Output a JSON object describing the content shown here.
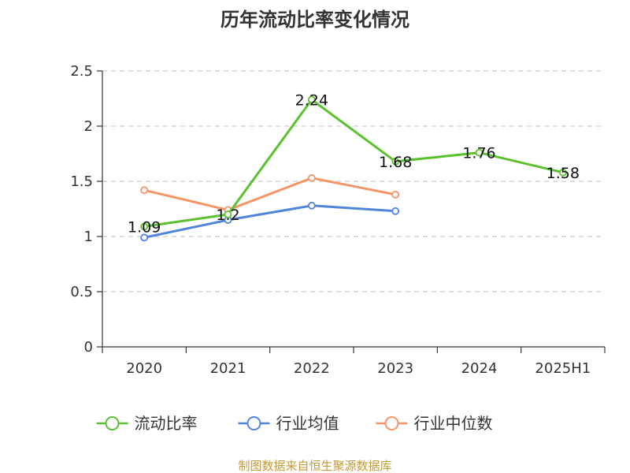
{
  "chart_data": {
    "type": "line",
    "title": "历年流动比率变化情况",
    "categories": [
      "2020",
      "2021",
      "2022",
      "2023",
      "2024",
      "2025H1"
    ],
    "ylim": [
      0,
      2.5
    ],
    "yticks": [
      "0",
      "0.5",
      "1",
      "1.5",
      "2",
      "2.5"
    ],
    "grid": true,
    "legend_position": "bottom",
    "series": [
      {
        "name": "流动比率",
        "color": "#5cc12e",
        "values": [
          1.09,
          1.2,
          2.24,
          1.68,
          1.76,
          1.58
        ],
        "labels": [
          "1.09",
          "1.2",
          "2.24",
          "1.68",
          "1.76",
          "1.58"
        ]
      },
      {
        "name": "行业均值",
        "color": "#4f86dc",
        "values": [
          0.99,
          1.15,
          1.28,
          1.23,
          null,
          null
        ]
      },
      {
        "name": "行业中位数",
        "color": "#f59566",
        "values": [
          1.42,
          1.24,
          1.53,
          1.38,
          null,
          null
        ]
      }
    ]
  },
  "source": {
    "text": "制图数据来自恒生聚源数据库",
    "color": "#c39a3a"
  }
}
